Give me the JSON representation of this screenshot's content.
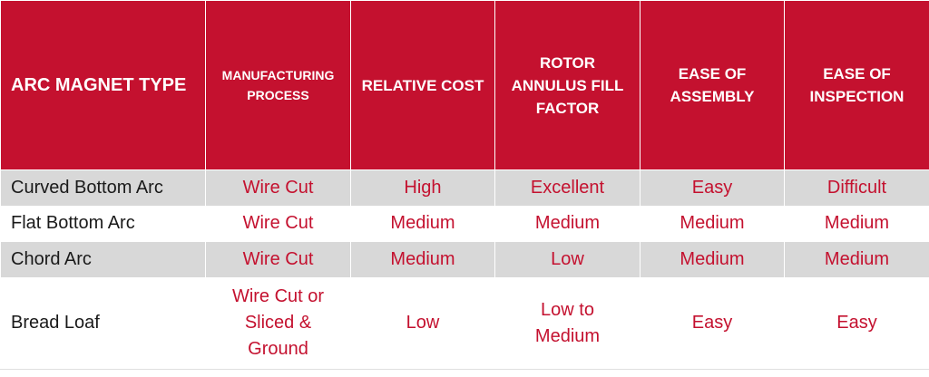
{
  "headers": [
    "ARC MAGNET TYPE",
    "MANUFACTURING\nPROCESS",
    "RELATIVE COST",
    "ROTOR\nANNULUS FILL\nFACTOR",
    "EASE OF\nASSEMBLY",
    "EASE OF\nINSPECTION"
  ],
  "rows": [
    [
      "Curved Bottom Arc",
      "Wire Cut",
      "High",
      "Excellent",
      "Easy",
      "Difficult"
    ],
    [
      "Flat Bottom Arc",
      "Wire Cut",
      "Medium",
      "Medium",
      "Medium",
      "Medium"
    ],
    [
      "Chord Arc",
      "Wire Cut",
      "Medium",
      "Low",
      "Medium",
      "Medium"
    ],
    [
      "Bread Loaf",
      "Wire Cut or\nSliced &\nGround",
      "Low",
      "Low to\nMedium",
      "Easy",
      "Easy"
    ]
  ],
  "colors": {
    "header_bg": "#c4112f",
    "header_text": "#ffffff",
    "value_text": "#c4112f",
    "label_text": "#1a1a1a",
    "shaded_row": "#d8d8d8"
  }
}
